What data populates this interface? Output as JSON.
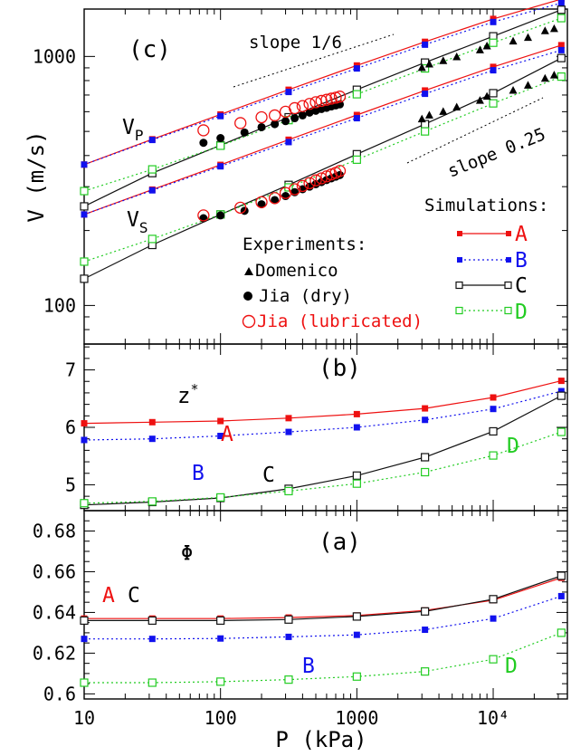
{
  "colors": {
    "A": "#ee1111",
    "B": "#1111ee",
    "C": "#111111",
    "D": "#22cc22",
    "exp_jia_lub": "#ee1111",
    "exp": "#000000"
  },
  "x_axis": {
    "label": "P (kPa)",
    "scale": "log",
    "range": [
      10,
      35000
    ],
    "ticks": [
      {
        "value": 10,
        "label": "10"
      },
      {
        "value": 100,
        "label": "100"
      },
      {
        "value": 1000,
        "label": "1000"
      },
      {
        "value": 10000,
        "label": "10⁴"
      }
    ]
  },
  "chart_data": [
    {
      "panel": "c",
      "type": "line",
      "panel_label": "(c)",
      "ylabel": "V (m/s)",
      "yscale": "log",
      "ylim": [
        70,
        1550
      ],
      "y_ticks": [
        {
          "value": 100,
          "label": "100"
        },
        {
          "value": 1000,
          "label": "1000"
        }
      ],
      "x": [
        10,
        31.6,
        100,
        316,
        1000,
        3160,
        10000,
        31600
      ],
      "series": [
        {
          "name": "A",
          "group": "VP",
          "style": "A",
          "values": [
            368,
            465,
            585,
            735,
            920,
            1145,
            1415,
            1700
          ]
        },
        {
          "name": "B",
          "group": "VP",
          "style": "B",
          "values": [
            368,
            462,
            576,
            720,
            895,
            1115,
            1375,
            1640
          ]
        },
        {
          "name": "C",
          "group": "VP",
          "style": "C",
          "values": [
            250,
            340,
            440,
            570,
            735,
            945,
            1205,
            1540
          ]
        },
        {
          "name": "D",
          "group": "VP",
          "style": "D",
          "values": [
            288,
            352,
            438,
            555,
            705,
            895,
            1135,
            1425
          ]
        },
        {
          "name": "A",
          "group": "VS",
          "style": "A",
          "values": [
            232,
            292,
            367,
            463,
            582,
            730,
            908,
            1110
          ]
        },
        {
          "name": "B",
          "group": "VS",
          "style": "B",
          "values": [
            232,
            290,
            362,
            453,
            565,
            708,
            880,
            1060
          ]
        },
        {
          "name": "C",
          "group": "VS",
          "style": "C",
          "values": [
            128,
            175,
            232,
            305,
            405,
            535,
            712,
            985
          ]
        },
        {
          "name": "D",
          "group": "VS",
          "style": "D",
          "values": [
            150,
            185,
            232,
            298,
            385,
            500,
            648,
            830
          ]
        }
      ],
      "experiments": [
        {
          "name": "Domenico",
          "marker": "triangle",
          "points": [
            [
              3000,
              900
            ],
            [
              3400,
              930
            ],
            [
              4300,
              960
            ],
            [
              5400,
              995
            ],
            [
              8000,
              1060
            ],
            [
              9000,
              1100
            ],
            [
              14000,
              1150
            ],
            [
              18000,
              1190
            ],
            [
              24000,
              1265
            ],
            [
              28000,
              1290
            ],
            [
              3000,
              560
            ],
            [
              3400,
              580
            ],
            [
              4300,
              600
            ],
            [
              5400,
              625
            ],
            [
              8000,
              665
            ],
            [
              9000,
              690
            ],
            [
              14000,
              730
            ],
            [
              18000,
              765
            ],
            [
              24000,
              815
            ],
            [
              28000,
              840
            ]
          ]
        },
        {
          "name": "Jia (dry)",
          "marker": "dot",
          "points": [
            [
              75,
              450
            ],
            [
              100,
              470
            ],
            [
              150,
              495
            ],
            [
              200,
              520
            ],
            [
              250,
              535
            ],
            [
              300,
              550
            ],
            [
              350,
              565
            ],
            [
              400,
              580
            ],
            [
              450,
              595
            ],
            [
              500,
              605
            ],
            [
              550,
              615
            ],
            [
              600,
              622
            ],
            [
              650,
              630
            ],
            [
              700,
              636
            ],
            [
              750,
              642
            ],
            [
              75,
              224
            ],
            [
              100,
              230
            ],
            [
              150,
              240
            ],
            [
              200,
              255
            ],
            [
              250,
              265
            ],
            [
              300,
              275
            ],
            [
              350,
              285
            ],
            [
              400,
              293
            ],
            [
              450,
              300
            ],
            [
              500,
              307
            ],
            [
              550,
              313
            ],
            [
              600,
              319
            ],
            [
              650,
              324
            ],
            [
              700,
              329
            ],
            [
              750,
              334
            ]
          ]
        },
        {
          "name": "Jia (lubricated)",
          "marker": "circle",
          "points": [
            [
              75,
              505
            ],
            [
              140,
              540
            ],
            [
              200,
              570
            ],
            [
              250,
              580
            ],
            [
              300,
              600
            ],
            [
              350,
              620
            ],
            [
              400,
              632
            ],
            [
              450,
              645
            ],
            [
              500,
              655
            ],
            [
              550,
              663
            ],
            [
              600,
              670
            ],
            [
              650,
              677
            ],
            [
              700,
              683
            ],
            [
              750,
              690
            ],
            [
              75,
              230
            ],
            [
              140,
              247
            ],
            [
              200,
              260
            ],
            [
              250,
              270
            ],
            [
              300,
              283
            ],
            [
              350,
              293
            ],
            [
              400,
              302
            ],
            [
              450,
              310
            ],
            [
              500,
              318
            ],
            [
              550,
              324
            ],
            [
              600,
              330
            ],
            [
              650,
              336
            ],
            [
              700,
              341
            ],
            [
              750,
              347
            ]
          ]
        }
      ]
    },
    {
      "panel": "b",
      "type": "line",
      "panel_label": "(b)",
      "ylabel": "z*",
      "ylim": [
        4.55,
        7.45
      ],
      "y_ticks": [
        {
          "value": 5,
          "label": "5"
        },
        {
          "value": 6,
          "label": "6"
        },
        {
          "value": 7,
          "label": "7"
        }
      ],
      "x": [
        10,
        31.6,
        100,
        316,
        1000,
        3160,
        10000,
        31600
      ],
      "series": [
        {
          "name": "A",
          "style": "A",
          "values": [
            6.07,
            6.09,
            6.11,
            6.16,
            6.23,
            6.33,
            6.52,
            6.81
          ]
        },
        {
          "name": "B",
          "style": "B",
          "values": [
            5.78,
            5.8,
            5.85,
            5.92,
            6.0,
            6.13,
            6.32,
            6.63
          ]
        },
        {
          "name": "C",
          "style": "C",
          "values": [
            4.65,
            4.7,
            4.77,
            4.93,
            5.16,
            5.48,
            5.93,
            6.55
          ]
        },
        {
          "name": "D",
          "style": "D",
          "values": [
            4.68,
            4.71,
            4.78,
            4.89,
            5.02,
            5.22,
            5.51,
            5.92
          ]
        }
      ]
    },
    {
      "panel": "a",
      "type": "line",
      "panel_label": "(a)",
      "ylabel": "Φ",
      "ylim": [
        0.5975,
        0.69
      ],
      "y_ticks": [
        {
          "value": 0.6,
          "label": "0.6"
        },
        {
          "value": 0.62,
          "label": "0.62"
        },
        {
          "value": 0.64,
          "label": "0.64"
        },
        {
          "value": 0.66,
          "label": "0.66"
        },
        {
          "value": 0.68,
          "label": "0.68"
        }
      ],
      "x": [
        10,
        31.6,
        100,
        316,
        1000,
        3160,
        10000,
        31600
      ],
      "series": [
        {
          "name": "A",
          "style": "A",
          "values": [
            0.637,
            0.637,
            0.637,
            0.6375,
            0.6385,
            0.641,
            0.646,
            0.657
          ]
        },
        {
          "name": "B",
          "style": "B",
          "values": [
            0.627,
            0.627,
            0.6272,
            0.628,
            0.629,
            0.6315,
            0.637,
            0.648
          ]
        },
        {
          "name": "C",
          "style": "C",
          "values": [
            0.636,
            0.636,
            0.636,
            0.6365,
            0.638,
            0.6405,
            0.6465,
            0.658
          ]
        },
        {
          "name": "D",
          "style": "D",
          "values": [
            0.6055,
            0.6055,
            0.606,
            0.607,
            0.6085,
            0.611,
            0.617,
            0.63
          ]
        }
      ]
    }
  ],
  "annotations": {
    "slope_1_6": "slope 1/6",
    "slope_025": "slope 0.25",
    "vp_main": "V",
    "vp_sub": "P",
    "vs_main": "V",
    "vs_sub": "S",
    "z_main": "z",
    "z_sup": "*",
    "label_A": "A",
    "label_B": "B",
    "label_C": "C",
    "label_D": "D",
    "label_AC_A": "A",
    "label_AC_C": "C"
  },
  "legend": {
    "experiments_title": "Experiments:",
    "experiments": [
      "Domenico",
      "Jia (dry)",
      "Jia (lubricated)"
    ],
    "simulations_title": "Simulations:",
    "simulations": [
      "A",
      "B",
      "C",
      "D"
    ]
  }
}
